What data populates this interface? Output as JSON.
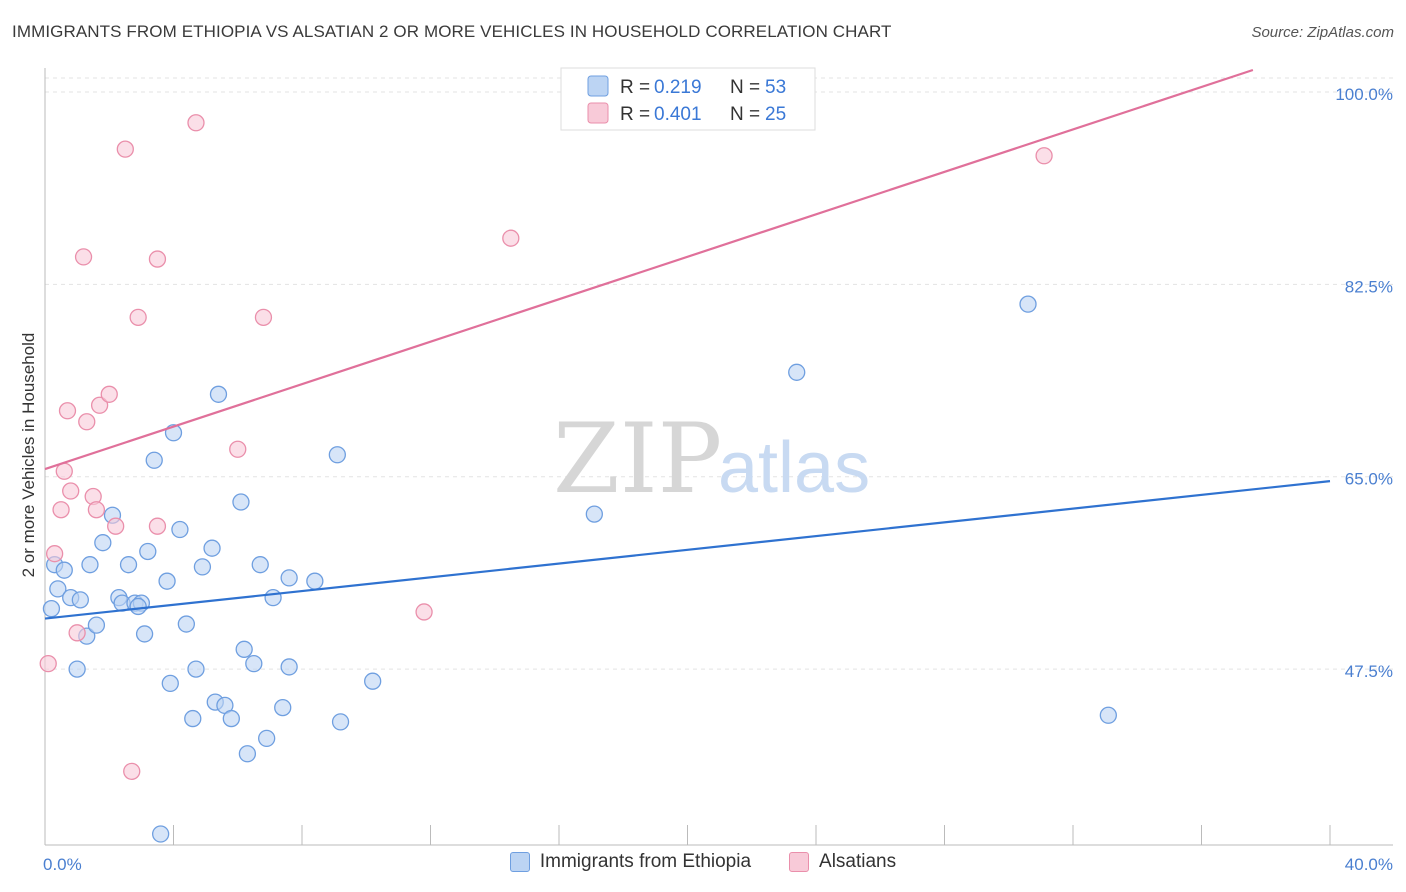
{
  "header": {
    "title": "IMMIGRANTS FROM ETHIOPIA VS ALSATIAN 2 OR MORE VEHICLES IN HOUSEHOLD CORRELATION CHART",
    "source": "Source: ZipAtlas.com"
  },
  "watermark": {
    "zip": "ZIP",
    "atlas": "atlas"
  },
  "legend": {
    "r_label": "R =",
    "n_label": "N =",
    "rows": [
      {
        "r": "0.219",
        "n": "53"
      },
      {
        "r": "0.401",
        "n": "25"
      }
    ]
  },
  "colors": {
    "blue_fill": "#bcd4f3",
    "blue_stroke": "#6f9fe0",
    "blue_line": "#2f72d0",
    "pink_fill": "#f8cad8",
    "pink_stroke": "#ea8fab",
    "pink_line": "#e0709a"
  },
  "chart_data": {
    "type": "scatter",
    "title": "IMMIGRANTS FROM ETHIOPIA VS ALSATIAN 2 OR MORE VEHICLES IN HOUSEHOLD CORRELATION CHART",
    "xlabel": "",
    "ylabel": "2 or more Vehicles in Household",
    "xlim": [
      0,
      40
    ],
    "ylim": [
      31.5,
      102
    ],
    "x_tick_labels": [
      "0.0%",
      "40.0%"
    ],
    "y_ticks": [
      {
        "value": 100,
        "label": "100.0%"
      },
      {
        "value": 82.5,
        "label": "82.5%"
      },
      {
        "value": 65,
        "label": "65.0%"
      },
      {
        "value": 47.5,
        "label": "47.5%"
      }
    ],
    "legend_position": "bottom-center",
    "series": [
      {
        "name": "Immigrants from Ethiopia",
        "color": "#6f9fe0",
        "trend": {
          "x": [
            0,
            40
          ],
          "y": [
            52.1,
            64.6
          ]
        },
        "points": [
          {
            "x": 0.3,
            "y": 57.0
          },
          {
            "x": 0.4,
            "y": 54.8
          },
          {
            "x": 0.6,
            "y": 56.5
          },
          {
            "x": 0.8,
            "y": 54.0
          },
          {
            "x": 1.0,
            "y": 47.5
          },
          {
            "x": 1.1,
            "y": 53.8
          },
          {
            "x": 1.3,
            "y": 50.5
          },
          {
            "x": 1.4,
            "y": 57.0
          },
          {
            "x": 1.6,
            "y": 51.5
          },
          {
            "x": 1.8,
            "y": 59.0
          },
          {
            "x": 2.1,
            "y": 61.5
          },
          {
            "x": 2.3,
            "y": 54.0
          },
          {
            "x": 2.4,
            "y": 53.5
          },
          {
            "x": 2.6,
            "y": 57.0
          },
          {
            "x": 2.8,
            "y": 53.5
          },
          {
            "x": 3.0,
            "y": 53.5
          },
          {
            "x": 3.1,
            "y": 50.7
          },
          {
            "x": 3.2,
            "y": 58.2
          },
          {
            "x": 3.4,
            "y": 66.5
          },
          {
            "x": 3.6,
            "y": 32.5
          },
          {
            "x": 3.8,
            "y": 55.5
          },
          {
            "x": 3.9,
            "y": 46.2
          },
          {
            "x": 4.0,
            "y": 69.0
          },
          {
            "x": 4.2,
            "y": 60.2
          },
          {
            "x": 4.4,
            "y": 51.6
          },
          {
            "x": 4.6,
            "y": 43.0
          },
          {
            "x": 4.7,
            "y": 47.5
          },
          {
            "x": 4.9,
            "y": 56.8
          },
          {
            "x": 5.2,
            "y": 58.5
          },
          {
            "x": 5.3,
            "y": 44.5
          },
          {
            "x": 5.4,
            "y": 72.5
          },
          {
            "x": 5.6,
            "y": 44.2
          },
          {
            "x": 5.8,
            "y": 43.0
          },
          {
            "x": 6.1,
            "y": 62.7
          },
          {
            "x": 6.2,
            "y": 49.3
          },
          {
            "x": 6.3,
            "y": 39.8
          },
          {
            "x": 6.5,
            "y": 48.0
          },
          {
            "x": 6.7,
            "y": 57.0
          },
          {
            "x": 6.9,
            "y": 41.2
          },
          {
            "x": 7.1,
            "y": 54.0
          },
          {
            "x": 7.4,
            "y": 44.0
          },
          {
            "x": 7.6,
            "y": 47.7
          },
          {
            "x": 7.6,
            "y": 55.8
          },
          {
            "x": 8.4,
            "y": 55.5
          },
          {
            "x": 9.1,
            "y": 67.0
          },
          {
            "x": 9.2,
            "y": 42.7
          },
          {
            "x": 10.2,
            "y": 46.4
          },
          {
            "x": 17.1,
            "y": 61.6
          },
          {
            "x": 23.4,
            "y": 74.5
          },
          {
            "x": 30.6,
            "y": 80.7
          },
          {
            "x": 33.1,
            "y": 43.3
          },
          {
            "x": 0.2,
            "y": 53.0
          },
          {
            "x": 2.9,
            "y": 53.2
          }
        ]
      },
      {
        "name": "Alsatians",
        "color": "#ea8fab",
        "trend": {
          "x": [
            0,
            37.6
          ],
          "y": [
            65.7,
            102.0
          ]
        },
        "points": [
          {
            "x": 0.1,
            "y": 48.0
          },
          {
            "x": 0.3,
            "y": 58.0
          },
          {
            "x": 0.5,
            "y": 62.0
          },
          {
            "x": 0.6,
            "y": 65.5
          },
          {
            "x": 0.7,
            "y": 71.0
          },
          {
            "x": 0.8,
            "y": 63.7
          },
          {
            "x": 1.0,
            "y": 50.8
          },
          {
            "x": 1.2,
            "y": 85.0
          },
          {
            "x": 1.3,
            "y": 70.0
          },
          {
            "x": 1.5,
            "y": 63.2
          },
          {
            "x": 1.6,
            "y": 62.0
          },
          {
            "x": 1.7,
            "y": 71.5
          },
          {
            "x": 2.0,
            "y": 72.5
          },
          {
            "x": 2.2,
            "y": 60.5
          },
          {
            "x": 2.5,
            "y": 94.8
          },
          {
            "x": 2.7,
            "y": 38.2
          },
          {
            "x": 2.9,
            "y": 79.5
          },
          {
            "x": 3.5,
            "y": 84.8
          },
          {
            "x": 3.5,
            "y": 60.5
          },
          {
            "x": 4.7,
            "y": 97.2
          },
          {
            "x": 6.0,
            "y": 67.5
          },
          {
            "x": 6.8,
            "y": 79.5
          },
          {
            "x": 11.8,
            "y": 52.7
          },
          {
            "x": 14.5,
            "y": 86.7
          },
          {
            "x": 31.1,
            "y": 94.2
          }
        ]
      }
    ]
  }
}
